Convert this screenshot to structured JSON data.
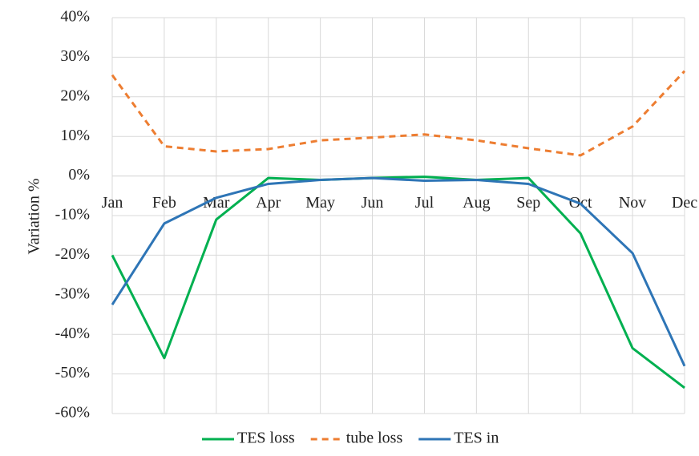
{
  "chart_data": {
    "type": "line",
    "y_label": "Variation %",
    "categories": [
      "Jan",
      "Feb",
      "Mar",
      "Apr",
      "May",
      "Jun",
      "Jul",
      "Aug",
      "Sep",
      "Oct",
      "Nov",
      "Dec"
    ],
    "series": [
      {
        "name": "TES loss",
        "color": "#00b050",
        "dash": false,
        "values": [
          -20,
          -46,
          -11,
          -0.5,
          -1,
          -0.5,
          -0.2,
          -1,
          -0.5,
          -14.5,
          -43.5,
          -53.5
        ]
      },
      {
        "name": "tube loss",
        "color": "#ed7d31",
        "dash": true,
        "values": [
          25.5,
          7.5,
          6.2,
          6.8,
          9,
          9.7,
          10.5,
          9,
          7,
          5.2,
          12.5,
          26.5
        ]
      },
      {
        "name": "TES in",
        "color": "#2e75b6",
        "dash": false,
        "values": [
          -32.5,
          -12,
          -5.5,
          -2,
          -1,
          -0.5,
          -1.2,
          -1,
          -2,
          -7,
          -19.5,
          -48
        ]
      }
    ],
    "ylim": [
      -60,
      40
    ],
    "yticks": [
      {
        "value": -60,
        "label": "-60%"
      },
      {
        "value": -50,
        "label": "-50%"
      },
      {
        "value": -40,
        "label": "-40%"
      },
      {
        "value": -30,
        "label": "-30%"
      },
      {
        "value": -20,
        "label": "-20%"
      },
      {
        "value": -10,
        "label": "-10%"
      },
      {
        "value": 0,
        "label": "0%"
      },
      {
        "value": 10,
        "label": "10%"
      },
      {
        "value": 20,
        "label": "20%"
      },
      {
        "value": 30,
        "label": "30%"
      },
      {
        "value": 40,
        "label": "40%"
      }
    ],
    "grid": true
  }
}
